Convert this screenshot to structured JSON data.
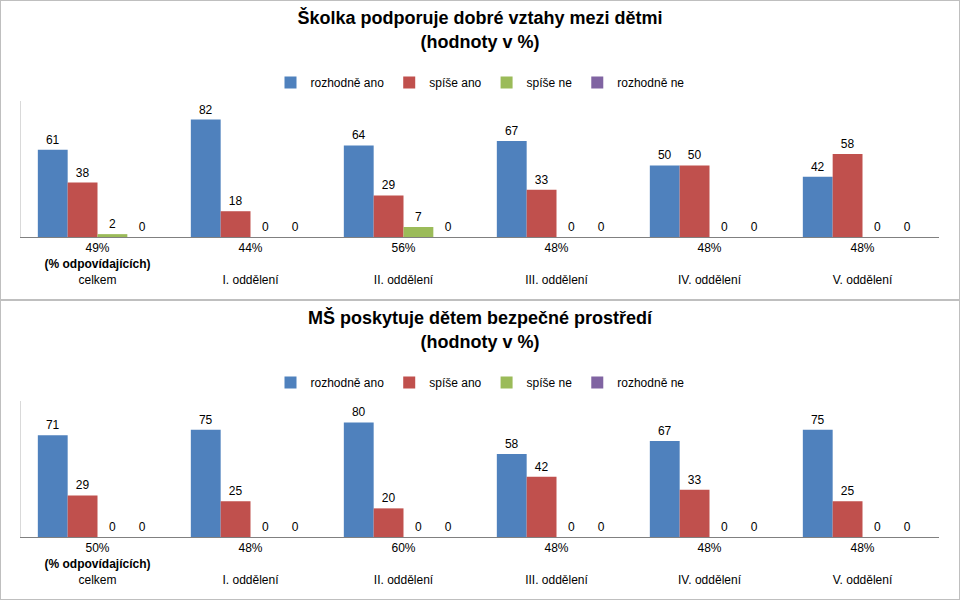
{
  "chart_data": [
    {
      "type": "bar",
      "title": "Školka podporuje dobré vztahy mezi dětmi",
      "subtitle": "(hodnoty v %)",
      "categories": [
        "celkem",
        "I. oddělení",
        "II. oddělení",
        "III. oddělení",
        "IV. oddělení",
        "V. oddělení"
      ],
      "response_rates": [
        "49%",
        "44%",
        "56%",
        "48%",
        "48%",
        "48%"
      ],
      "response_rate_note": "(% odpovídajících)",
      "series": [
        {
          "name": "rozhodně ano",
          "color": "#4F81BD",
          "values": [
            61,
            82,
            64,
            67,
            50,
            42
          ]
        },
        {
          "name": "spíše ano",
          "color": "#C0504D",
          "values": [
            38,
            18,
            29,
            33,
            50,
            58
          ]
        },
        {
          "name": "spíše ne",
          "color": "#9BBB59",
          "values": [
            2,
            0,
            7,
            0,
            0,
            0
          ]
        },
        {
          "name": "rozhodně ne",
          "color": "#8064A2",
          "values": [
            0,
            0,
            0,
            0,
            0,
            0
          ]
        }
      ],
      "ylim": [
        0,
        95
      ],
      "grid": false,
      "legend": "top",
      "data_labels": true,
      "tick_labels": "x"
    },
    {
      "type": "bar",
      "title": "MŠ poskytuje dětem bezpečné prostředí",
      "subtitle": "(hodnoty v %)",
      "categories": [
        "celkem",
        "I. oddělení",
        "II. oddělení",
        "III. oddělení",
        "IV. oddělení",
        "V. oddělení"
      ],
      "response_rates": [
        "50%",
        "48%",
        "60%",
        "48%",
        "48%",
        "48%"
      ],
      "response_rate_note": "(% odpovídajících)",
      "series": [
        {
          "name": "rozhodně ano",
          "color": "#4F81BD",
          "values": [
            71,
            75,
            80,
            58,
            67,
            75
          ]
        },
        {
          "name": "spíše ano",
          "color": "#C0504D",
          "values": [
            29,
            25,
            20,
            42,
            33,
            25
          ]
        },
        {
          "name": "spíše ne",
          "color": "#9BBB59",
          "values": [
            0,
            0,
            0,
            0,
            0,
            0
          ]
        },
        {
          "name": "rozhodně ne",
          "color": "#8064A2",
          "values": [
            0,
            0,
            0,
            0,
            0,
            0
          ]
        }
      ],
      "ylim": [
        0,
        95
      ],
      "grid": false,
      "legend": "top",
      "data_labels": true,
      "tick_labels": "x"
    }
  ]
}
